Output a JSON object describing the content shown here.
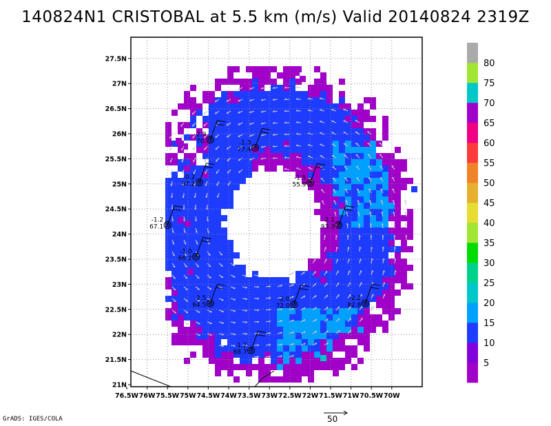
{
  "title": "140824N1 CRISTOBAL at 5.5 km (m/s) Valid 20140824 2319Z",
  "credit": "GrADS: IGES/COLA",
  "scale_vector_label": "50",
  "lon_ticks": [
    "76.5W",
    "76W",
    "75.5W",
    "75W",
    "74.5W",
    "74W",
    "73.5W",
    "73W",
    "72.5W",
    "72W",
    "71.5W",
    "71W",
    "70.5W",
    "70W"
  ],
  "lat_ticks": [
    "21N",
    "21.5N",
    "22N",
    "22.5N",
    "23N",
    "23.5N",
    "24N",
    "24.5N",
    "25N",
    "25.5N",
    "26N",
    "26.5N",
    "27N",
    "27.5N"
  ],
  "legend": {
    "labels": [
      "5",
      "10",
      "15",
      "20",
      "25",
      "30",
      "35",
      "40",
      "45",
      "50",
      "55",
      "60",
      "65",
      "70",
      "75",
      "80"
    ],
    "colors": [
      "#a000c8",
      "#8200dc",
      "#1e3cff",
      "#00a0ff",
      "#00c8c8",
      "#00d28c",
      "#00dc00",
      "#a0e632",
      "#e6dc32",
      "#e6af2d",
      "#f08228",
      "#fa3c3c",
      "#f00082",
      "#a000c8",
      "#00c8c8",
      "#a0e632",
      "#aaaaaa"
    ]
  },
  "stations": [
    {
      "lon": -74.45,
      "lat": 25.88,
      "top": "-2.9",
      "bot": "70."
    },
    {
      "lon": -73.35,
      "lat": 25.72,
      "top": "-1.3",
      "bot": "77.4"
    },
    {
      "lon": -74.72,
      "lat": 25.03,
      "top": "-0.2",
      "bot": "37.2"
    },
    {
      "lon": -72.0,
      "lat": 25.02,
      "top": "-1.5",
      "bot": "55.9"
    },
    {
      "lon": -75.5,
      "lat": 24.18,
      "top": "-1.2",
      "bot": "67.1"
    },
    {
      "lon": -71.3,
      "lat": 24.18,
      "top": "2.1",
      "bot": "93.3"
    },
    {
      "lon": -74.8,
      "lat": 23.55,
      "top": "-1.0",
      "bot": "66.2"
    },
    {
      "lon": -74.45,
      "lat": 22.62,
      "top": "-2.5",
      "bot": "64.5"
    },
    {
      "lon": -72.4,
      "lat": 22.6,
      "top": "-2.0",
      "bot": "72.0"
    },
    {
      "lon": -70.65,
      "lat": 22.62,
      "top": "-2.2",
      "bot": "82.8"
    },
    {
      "lon": -73.45,
      "lat": 21.68,
      "top": "-1.2",
      "bot": "88.7"
    }
  ]
}
